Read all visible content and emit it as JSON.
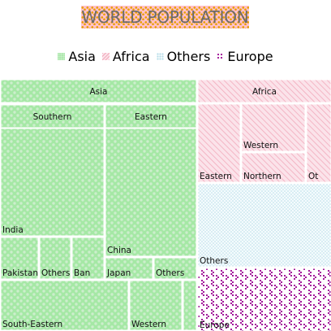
{
  "colors": {
    "asia_fill": "#a5e8a5",
    "asia_dot": "#cceecc",
    "africa_fill": "#fbe3ea",
    "africa_line": "#f2aabb",
    "others_fill": "#f4fbfd",
    "others_dot": "#b8dde8",
    "europe_fill": "#ffffff",
    "europe_dot": "#a2189a",
    "title_bg": "#ffc0cb",
    "title_text": "#6b6b6b"
  },
  "chart_data": {
    "type": "treemap",
    "title": "WORLD POPULATION",
    "legend": {
      "placement": "top",
      "items": [
        {
          "name": "Asia",
          "pattern": "green-dots"
        },
        {
          "name": "Africa",
          "pattern": "pink-diagonal"
        },
        {
          "name": "Others",
          "pattern": "blue-dots"
        },
        {
          "name": "Europe",
          "pattern": "purple-dots"
        }
      ]
    },
    "groups": [
      {
        "name": "Asia",
        "pattern": "asia",
        "label": "Asia",
        "children": [
          {
            "name": "Southern",
            "label": "Southern",
            "children": [
              {
                "name": "India",
                "label": "India"
              },
              {
                "name": "Pakistan",
                "label": "Pakistan"
              },
              {
                "name": "Others",
                "label": "Others"
              },
              {
                "name": "Bangladesh",
                "label": "Ban"
              }
            ]
          },
          {
            "name": "Eastern",
            "label": "Eastern",
            "children": [
              {
                "name": "China",
                "label": "China"
              },
              {
                "name": "Japan",
                "label": "Japan"
              },
              {
                "name": "Others",
                "label": "Others"
              }
            ]
          },
          {
            "name": "South-Eastern",
            "label": "South-Eastern"
          },
          {
            "name": "Western",
            "label": "Western"
          }
        ]
      },
      {
        "name": "Africa",
        "pattern": "africa",
        "label": "Africa",
        "children": [
          {
            "name": "Eastern",
            "label": "Eastern"
          },
          {
            "name": "Western",
            "label": "Western"
          },
          {
            "name": "Northern",
            "label": "Northern"
          },
          {
            "name": "Others",
            "label": "Ot"
          }
        ]
      },
      {
        "name": "Others",
        "pattern": "others",
        "label": "Others"
      },
      {
        "name": "Europe",
        "pattern": "europe",
        "label": "Europe"
      }
    ]
  }
}
